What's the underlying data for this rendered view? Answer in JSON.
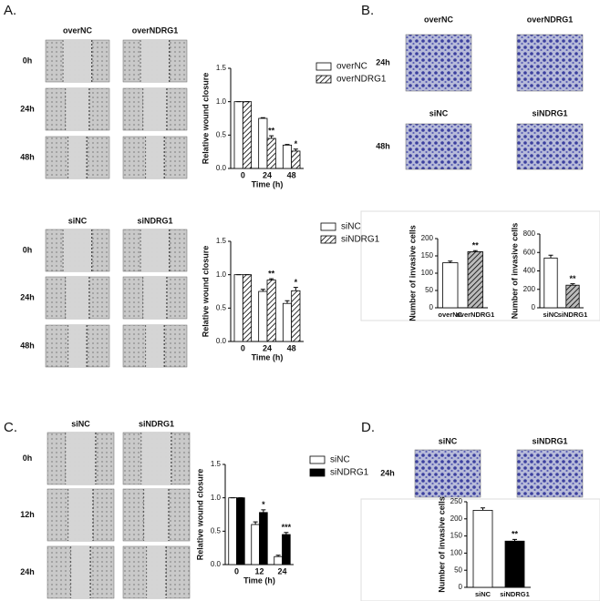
{
  "panel_labels": [
    "A.",
    "B.",
    "C.",
    "D."
  ],
  "images": [
    {
      "columns": [
        "overNC",
        "overNDRG1"
      ],
      "rows": [
        "0h",
        "24h",
        "48h"
      ]
    },
    {
      "columns": [
        "siNC",
        "siNDRG1"
      ],
      "rows": [
        "0h",
        "24h",
        "48h"
      ]
    },
    {
      "columns": [
        "overNC",
        "overNDRG1"
      ],
      "rows": [
        "24h"
      ]
    },
    {
      "columns": [
        "siNC",
        "siNDRG1"
      ],
      "rows": [
        "48h"
      ]
    },
    {
      "columns": [
        "siNC",
        "siNDRG1"
      ],
      "rows": [
        "0h",
        "12h",
        "24h"
      ]
    },
    {
      "columns": [
        "siNC",
        "siNDRG1"
      ],
      "rows": [
        "24h"
      ]
    }
  ],
  "chart_data": [
    {
      "type": "bar",
      "ylabel": "Relative wound closure",
      "xlabel": "Time (h)",
      "categories": [
        "0",
        "24",
        "48"
      ],
      "series": [
        {
          "name": "overNC",
          "color": "#ffffff",
          "hatched": false,
          "values": [
            1.0,
            0.75,
            0.35
          ],
          "errors": [
            0,
            0.01,
            0.01
          ],
          "sig": [
            null,
            null,
            null
          ]
        },
        {
          "name": "overNDRG1",
          "color": "#ffffff",
          "hatched": true,
          "values": [
            1.0,
            0.45,
            0.26
          ],
          "errors": [
            0,
            0.04,
            0.03
          ],
          "sig": [
            null,
            "**",
            "*"
          ]
        }
      ],
      "ylim": [
        0,
        1.5
      ],
      "yticks": [
        {
          "value": 0,
          "label": "0.0"
        },
        {
          "value": 0.5,
          "label": "0.5"
        },
        {
          "value": 1,
          "label": "1.0"
        },
        {
          "value": 1.5,
          "label": "1.5"
        }
      ]
    },
    {
      "type": "bar",
      "ylabel": "Relative wound closure",
      "xlabel": "Time (h)",
      "categories": [
        "0",
        "24",
        "48"
      ],
      "series": [
        {
          "name": "siNC",
          "color": "#ffffff",
          "hatched": false,
          "values": [
            1.0,
            0.75,
            0.57
          ],
          "errors": [
            0,
            0.03,
            0.04
          ],
          "sig": [
            null,
            null,
            null
          ]
        },
        {
          "name": "siNDRG1",
          "color": "#ffffff",
          "hatched": true,
          "values": [
            1.0,
            0.92,
            0.76
          ],
          "errors": [
            0,
            0.02,
            0.05
          ],
          "sig": [
            null,
            "**",
            "*"
          ]
        }
      ],
      "ylim": [
        0,
        1.5
      ],
      "yticks": [
        {
          "value": 0,
          "label": "0.0"
        },
        {
          "value": 0.5,
          "label": "0.5"
        },
        {
          "value": 1,
          "label": "1.0"
        },
        {
          "value": 1.5,
          "label": "1.5"
        }
      ]
    },
    {
      "type": "bar",
      "ylabel": "Number of invasive cells",
      "categories": [
        "overNC",
        "overNDRG1"
      ],
      "values": [
        130,
        162
      ],
      "errors": [
        5,
        3
      ],
      "colors": [
        "#ffffff",
        "#bbbbbb"
      ],
      "hatched": [
        false,
        true
      ],
      "sig": [
        null,
        "**"
      ],
      "ylim": [
        0,
        200
      ],
      "yticks": [
        0,
        50,
        100,
        150,
        200
      ]
    },
    {
      "type": "bar",
      "ylabel": "Number of invasive cells",
      "categories": [
        "siNC",
        "siNDRG1"
      ],
      "values": [
        540,
        245
      ],
      "errors": [
        30,
        15
      ],
      "colors": [
        "#ffffff",
        "#bbbbbb"
      ],
      "hatched": [
        false,
        true
      ],
      "sig": [
        null,
        "**"
      ],
      "ylim": [
        0,
        800
      ],
      "yticks": [
        0,
        200,
        400,
        600,
        800
      ]
    },
    {
      "type": "bar",
      "ylabel": "Relative wound closure",
      "xlabel": "Time (h)",
      "categories": [
        "0",
        "12",
        "24"
      ],
      "series": [
        {
          "name": "siNC",
          "color": "#ffffff",
          "hatched": false,
          "values": [
            1.0,
            0.6,
            0.12
          ],
          "errors": [
            0,
            0.04,
            0.02
          ],
          "sig": [
            null,
            null,
            null
          ]
        },
        {
          "name": "siNDRG1",
          "color": "#000000",
          "hatched": false,
          "values": [
            1.0,
            0.78,
            0.45
          ],
          "errors": [
            0,
            0.04,
            0.03
          ],
          "sig": [
            null,
            "*",
            "***"
          ]
        }
      ],
      "ylim": [
        0,
        1.5
      ],
      "yticks": [
        {
          "value": 0,
          "label": "0.0"
        },
        {
          "value": 0.5,
          "label": "0.5"
        },
        {
          "value": 1,
          "label": "1.0"
        },
        {
          "value": 1.5,
          "label": "1.5"
        }
      ]
    },
    {
      "type": "bar",
      "ylabel": "Number of invasive cells",
      "categories": [
        "siNC",
        "siNDRG1"
      ],
      "values": [
        225,
        135
      ],
      "errors": [
        7,
        5
      ],
      "colors": [
        "#ffffff",
        "#000000"
      ],
      "hatched": [
        false,
        false
      ],
      "sig": [
        null,
        "**"
      ],
      "ylim": [
        0,
        250
      ],
      "yticks": [
        0,
        50,
        100,
        150,
        200,
        250
      ]
    }
  ]
}
